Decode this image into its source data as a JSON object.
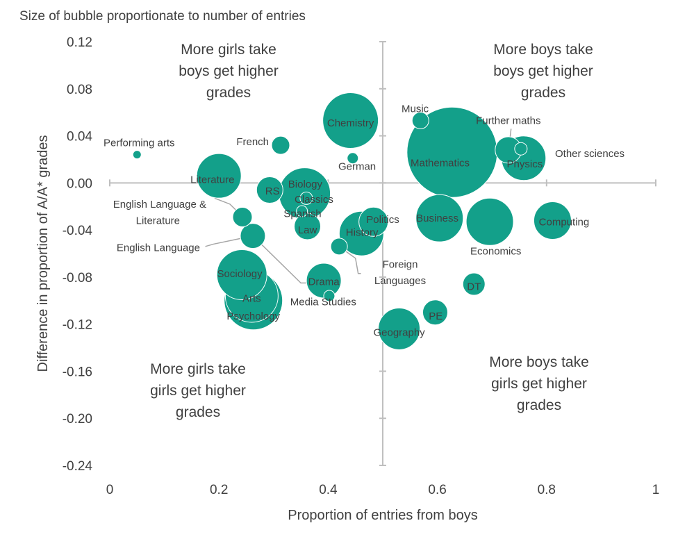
{
  "chart_data": {
    "type": "scatter",
    "subtitle": "Size of bubble proportionate to number of entries",
    "xlabel": "Proportion of entries from boys",
    "ylabel": "Difference in proportion of A/A* grades",
    "xlim": [
      0,
      1
    ],
    "ylim": [
      -0.24,
      0.12
    ],
    "x_ticks": [
      "0",
      "0.2",
      "0.4",
      "0.6",
      "0.8",
      "1"
    ],
    "y_ticks": [
      "0.12",
      "0.08",
      "0.04",
      "0.00",
      "-0.04",
      "-0.08",
      "-0.12",
      "-0.16",
      "-0.20",
      "-0.24"
    ],
    "grid": false,
    "quadrant_labels": {
      "top_left": [
        "More girls take",
        "boys get higher",
        "grades"
      ],
      "top_right": [
        "More boys take",
        "boys get higher",
        "grades"
      ],
      "bottom_left": [
        "More girls take",
        "girls get higher",
        "grades"
      ],
      "bottom_right": [
        "More boys take",
        "girls get higher",
        "grades"
      ]
    },
    "color": "#13A08A",
    "points": [
      {
        "name": "Performing arts",
        "x": 0.05,
        "y": 0.024,
        "r": 6
      },
      {
        "name": "French",
        "x": 0.313,
        "y": 0.032,
        "r": 13
      },
      {
        "name": "Literature",
        "x": 0.2,
        "y": 0.006,
        "r": 32
      },
      {
        "name": "RS",
        "x": 0.293,
        "y": -0.006,
        "r": 19
      },
      {
        "name": "Biology",
        "x": 0.357,
        "y": -0.009,
        "r": 37
      },
      {
        "name": "Classics",
        "x": 0.36,
        "y": -0.013,
        "r": 9
      },
      {
        "name": "Spanish",
        "x": 0.352,
        "y": -0.024,
        "r": 8
      },
      {
        "name": "Law",
        "x": 0.362,
        "y": -0.037,
        "r": 19
      },
      {
        "name": "English Language & Literature",
        "x": 0.243,
        "y": -0.029,
        "r": 14
      },
      {
        "name": "English Language",
        "x": 0.262,
        "y": -0.045,
        "r": 18
      },
      {
        "name": "Chemistry",
        "x": 0.441,
        "y": 0.053,
        "r": 40
      },
      {
        "name": "German",
        "x": 0.445,
        "y": 0.021,
        "r": 8
      },
      {
        "name": "Music",
        "x": 0.569,
        "y": 0.053,
        "r": 12
      },
      {
        "name": "Mathematics",
        "x": 0.627,
        "y": 0.026,
        "r": 65
      },
      {
        "name": "Further maths",
        "x": 0.73,
        "y": 0.028,
        "r": 19
      },
      {
        "name": "Physics",
        "x": 0.758,
        "y": 0.021,
        "r": 32
      },
      {
        "name": "Other sciences",
        "x": 0.753,
        "y": 0.029,
        "r": 9
      },
      {
        "name": "Politics",
        "x": 0.483,
        "y": -0.033,
        "r": 21
      },
      {
        "name": "History",
        "x": 0.461,
        "y": -0.043,
        "r": 32
      },
      {
        "name": "Foreign Languages",
        "x": 0.42,
        "y": -0.054,
        "r": 12
      },
      {
        "name": "Business",
        "x": 0.604,
        "y": -0.03,
        "r": 34
      },
      {
        "name": "Economics",
        "x": 0.696,
        "y": -0.033,
        "r": 34
      },
      {
        "name": "Computing",
        "x": 0.811,
        "y": -0.032,
        "r": 27
      },
      {
        "name": "Sociology",
        "x": 0.242,
        "y": -0.078,
        "r": 36
      },
      {
        "name": "Drama",
        "x": 0.392,
        "y": -0.083,
        "r": 25
      },
      {
        "name": "Media Studies",
        "x": 0.402,
        "y": -0.096,
        "r": 8
      },
      {
        "name": "Arts",
        "x": 0.26,
        "y": -0.096,
        "r": 38
      },
      {
        "name": "Psychology",
        "x": 0.263,
        "y": -0.1,
        "r": 42
      },
      {
        "name": "DT",
        "x": 0.667,
        "y": -0.086,
        "r": 16
      },
      {
        "name": "PE",
        "x": 0.596,
        "y": -0.11,
        "r": 18
      },
      {
        "name": "Geography",
        "x": 0.53,
        "y": -0.124,
        "r": 30
      }
    ],
    "labels": [
      {
        "text": "Performing arts",
        "x": 0.035,
        "y": 0.034
      },
      {
        "text": "French",
        "x": 0.257,
        "y": 0.035
      },
      {
        "text": "Literature",
        "x": 0.188,
        "y": 0.003
      },
      {
        "text": "RS",
        "x": 0.298,
        "y": -0.007
      },
      {
        "text": "Biology",
        "x": 0.358,
        "y": -0.001
      },
      {
        "text": "Classics",
        "x": 0.374,
        "y": -0.014
      },
      {
        "text": "Spanish",
        "x": 0.353,
        "y": -0.026
      },
      {
        "text": "Law",
        "x": 0.362,
        "y": -0.04
      },
      {
        "text": "English Language &",
        "x": 0.097,
        "y": -0.018
      },
      {
        "text": "Literature",
        "x": 0.097,
        "y": -0.032
      },
      {
        "text": "English Language",
        "x": 0.097,
        "y": -0.055
      },
      {
        "text": "Chemistry",
        "x": 0.441,
        "y": 0.051
      },
      {
        "text": "German",
        "x": 0.453,
        "y": 0.014
      },
      {
        "text": "Music",
        "x": 0.56,
        "y": 0.063
      },
      {
        "text": "Mathematics",
        "x": 0.605,
        "y": 0.017
      },
      {
        "text": "Further maths",
        "x": 0.73,
        "y": 0.053
      },
      {
        "text": "Physics",
        "x": 0.76,
        "y": 0.016
      },
      {
        "text": "Other sciences",
        "x": 0.816,
        "y": 0.025
      },
      {
        "text": "Politics",
        "x": 0.5,
        "y": -0.031
      },
      {
        "text": "History",
        "x": 0.462,
        "y": -0.042
      },
      {
        "text": "Foreign",
        "x": 0.53,
        "y": -0.069
      },
      {
        "text": "Languages",
        "x": 0.53,
        "y": -0.083
      },
      {
        "text": "Business",
        "x": 0.6,
        "y": -0.03
      },
      {
        "text": "Economics",
        "x": 0.707,
        "y": -0.058
      },
      {
        "text": "Computing",
        "x": 0.832,
        "y": -0.033
      },
      {
        "text": "Sociology",
        "x": 0.238,
        "y": -0.077
      },
      {
        "text": "Drama",
        "x": 0.392,
        "y": -0.084
      },
      {
        "text": "Media Studies",
        "x": 0.391,
        "y": -0.101
      },
      {
        "text": "Arts",
        "x": 0.26,
        "y": -0.098
      },
      {
        "text": "Psychology",
        "x": 0.263,
        "y": -0.113
      },
      {
        "text": "DT",
        "x": 0.667,
        "y": -0.088
      },
      {
        "text": "PE",
        "x": 0.597,
        "y": -0.113
      },
      {
        "text": "Geography",
        "x": 0.53,
        "y": -0.127
      }
    ]
  }
}
